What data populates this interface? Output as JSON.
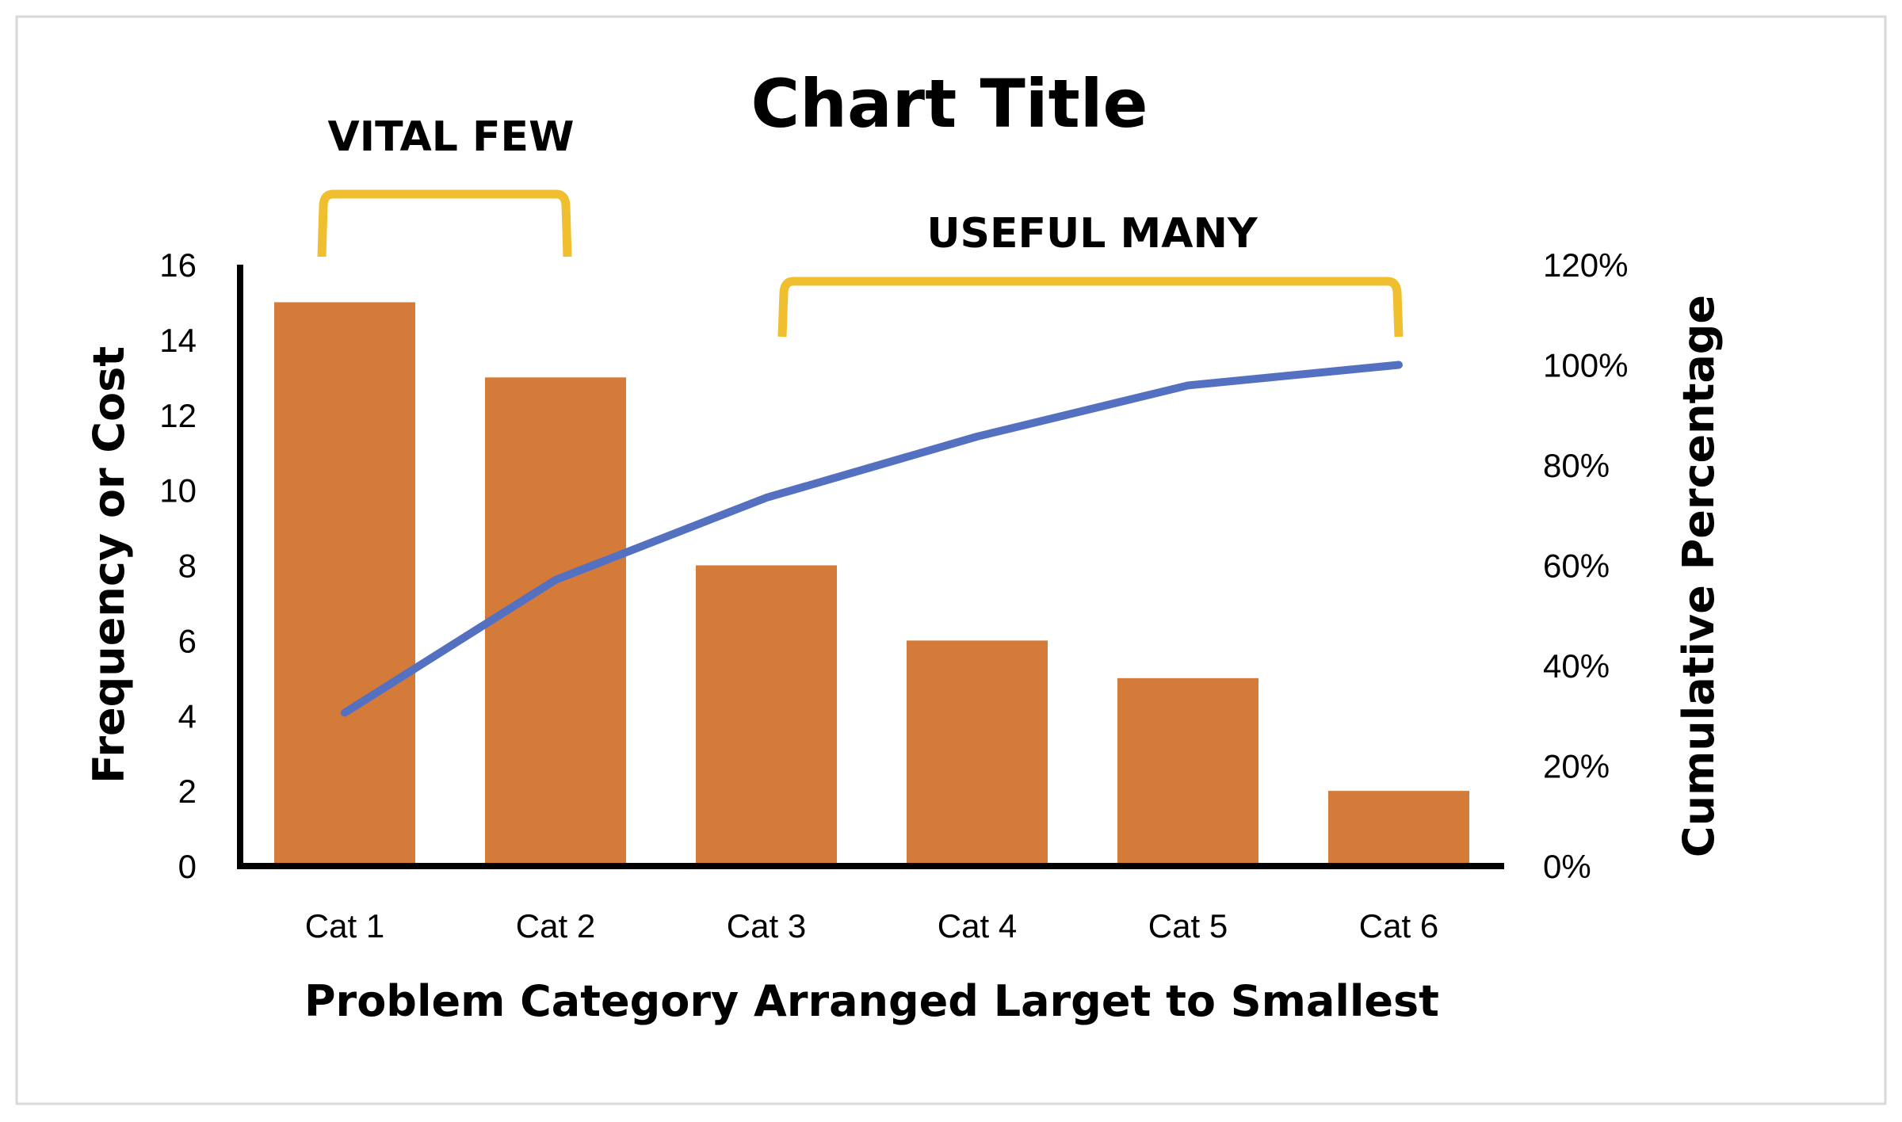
{
  "chart_data": {
    "type": "bar+line",
    "title": "Chart Title",
    "xlabel": "Problem Category Arranged Larget to Smallest",
    "ylabel": "Frequency or Cost",
    "y2label": "Cumulative Percentage",
    "categories": [
      "Cat 1",
      "Cat 2",
      "Cat 3",
      "Cat 4",
      "Cat 5",
      "Cat 6"
    ],
    "series": [
      {
        "type": "bar",
        "axis": "left",
        "values": [
          15,
          13,
          8,
          6,
          5,
          2
        ],
        "color": "#D57B3A"
      },
      {
        "type": "line",
        "axis": "right",
        "values": [
          30.6,
          57.1,
          73.5,
          85.7,
          95.9,
          100
        ],
        "color": "#5470C0"
      }
    ],
    "ylim": [
      0,
      16
    ],
    "yticks": [
      0,
      2,
      4,
      6,
      8,
      10,
      12,
      14,
      16
    ],
    "y2lim": [
      0,
      120
    ],
    "y2ticks": [
      "0%",
      "20%",
      "40%",
      "60%",
      "80%",
      "100%",
      "120%"
    ],
    "grid": false,
    "legend": "none",
    "annotations": [
      {
        "text": "VITAL FEW",
        "spans": [
          "Cat 1",
          "Cat 2"
        ],
        "color": "#F0BF30"
      },
      {
        "text": "USEFUL MANY",
        "spans": [
          "Cat 3",
          "Cat 6"
        ],
        "color": "#F0BF30"
      }
    ]
  }
}
